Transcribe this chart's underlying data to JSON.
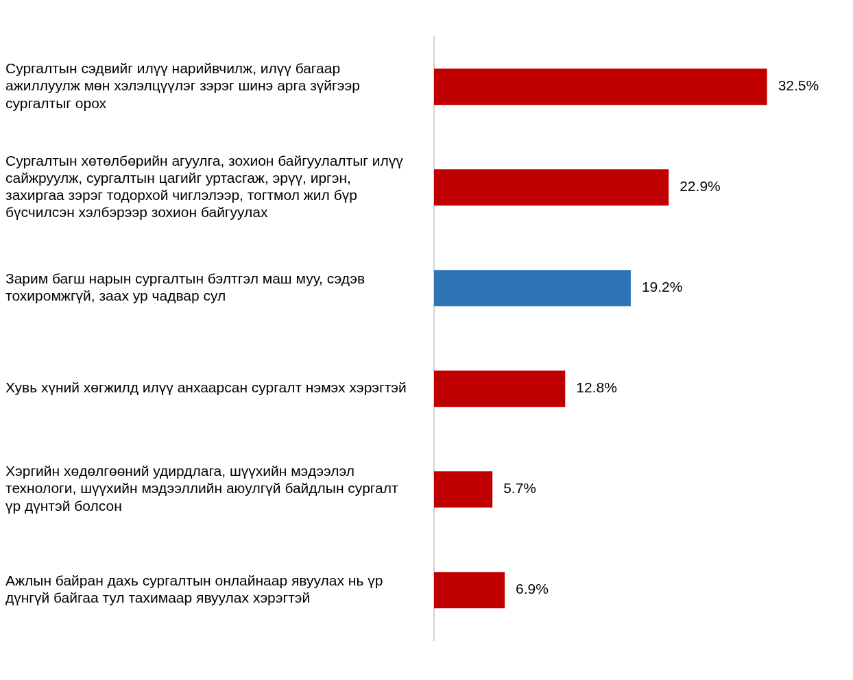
{
  "chart_data": {
    "type": "bar",
    "orientation": "horizontal",
    "categories": [
      "Сургалтын сэдвийг илүү нарийвчилж, илүү багаар ажиллуулж мөн хэлэлцүүлэг зэрэг шинэ арга зүйгээр сургалтыг орох",
      "Сургалтын хөтөлбөрийн агуулга, зохион байгуулалтыг илүү сайжруулж, сургалтын цагийг уртасгаж, эрүү, иргэн, захиргаа зэрэг тодорхой чиглэлээр, тогтмол жил бүр бүсчилсэн хэлбэрээр зохион байгуулах",
      "Зарим багш нарын сургалтын бэлтгэл маш муу, сэдэв тохиромжгүй, заах ур чадвар сул",
      "Хувь хүний хөгжилд илүү анхаарсан сургалт нэмэх хэрэгтэй",
      "Хэргийн хөдөлгөөний удирдлага, шүүхийн мэдээлэл технологи, шүүхийн мэдээллийн аюулгүй байдлын сургалт үр дүнтэй болсон",
      "Ажлын байран дахь сургалтын онлайнаар явуулах нь үр дүнгүй байгаа тул тахимаар явуулах хэрэгтэй"
    ],
    "values": [
      32.5,
      22.9,
      19.2,
      12.8,
      5.7,
      6.9
    ],
    "colors": [
      "#c00000",
      "#c00000",
      "#2e75b6",
      "#c00000",
      "#c00000",
      "#c00000"
    ],
    "value_labels": [
      "32.5%",
      "22.9%",
      "19.2%",
      "12.8%",
      "5.7%",
      "6.9%"
    ],
    "tick_labels": "y",
    "grid": false,
    "legend": false
  }
}
